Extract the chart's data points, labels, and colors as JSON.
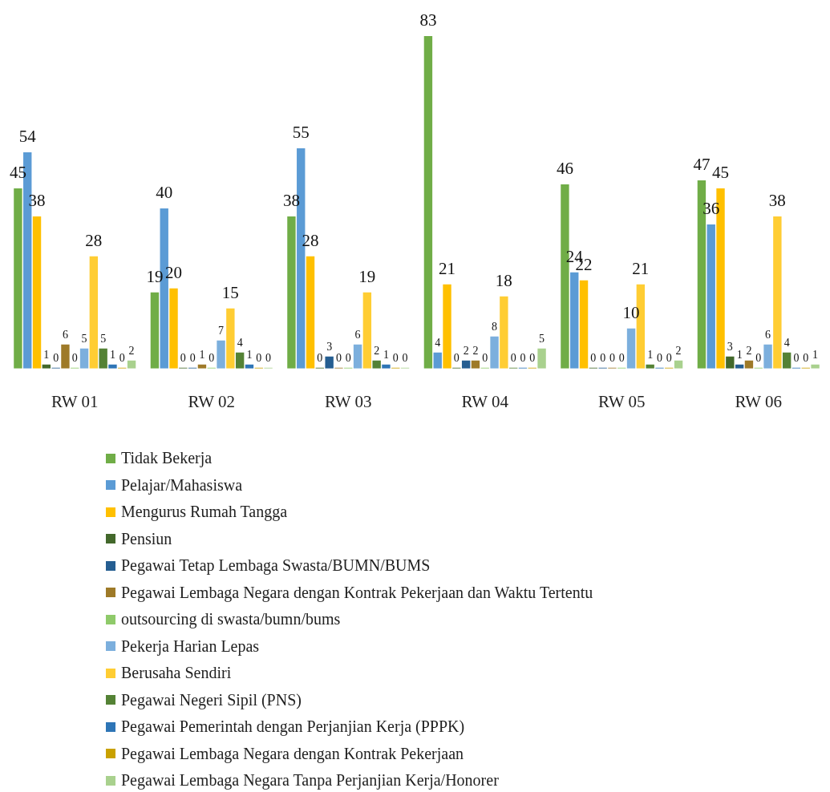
{
  "chart_data": {
    "type": "bar",
    "categories": [
      "RW 01",
      "RW 02",
      "RW 03",
      "RW 04",
      "RW 05",
      "RW 06"
    ],
    "series": [
      {
        "name": "Tidak Bekerja",
        "color": "#70ad47",
        "values": [
          45,
          19,
          38,
          83,
          46,
          47
        ]
      },
      {
        "name": "Pelajar/Mahasiswa",
        "color": "#5b9bd5",
        "values": [
          54,
          40,
          55,
          4,
          24,
          36
        ]
      },
      {
        "name": "Mengurus Rumah Tangga",
        "color": "#ffc000",
        "values": [
          38,
          20,
          28,
          21,
          22,
          45
        ]
      },
      {
        "name": "Pensiun",
        "color": "#43682b",
        "values": [
          1,
          0,
          0,
          0,
          0,
          3
        ]
      },
      {
        "name": "Pegawai Tetap Lembaga Swasta/BUMN/BUMS",
        "color": "#255e91",
        "values": [
          0,
          0,
          3,
          2,
          0,
          1
        ]
      },
      {
        "name": "Pegawai Lembaga Negara dengan Kontrak Pekerjaan dan Waktu Tertentu",
        "color": "#9e7a28",
        "values": [
          6,
          1,
          0,
          2,
          0,
          2
        ]
      },
      {
        "name": "outsourcing di swasta/bumn/bums",
        "color": "#8fca6a",
        "values": [
          0,
          0,
          0,
          0,
          0,
          0
        ]
      },
      {
        "name": "Pekerja Harian Lepas",
        "color": "#7cafdd",
        "values": [
          5,
          7,
          6,
          8,
          10,
          6
        ]
      },
      {
        "name": "Berusaha Sendiri",
        "color": "#ffcd33",
        "values": [
          28,
          15,
          19,
          18,
          21,
          38
        ]
      },
      {
        "name": "Pegawai Negeri Sipil (PNS)",
        "color": "#548235",
        "values": [
          5,
          4,
          2,
          0,
          1,
          4
        ]
      },
      {
        "name": "Pegawai Pemerintah dengan Perjanjian Kerja (PPPK)",
        "color": "#2e75b6",
        "values": [
          1,
          1,
          1,
          0,
          0,
          0
        ]
      },
      {
        "name": "Pegawai Lembaga Negara dengan Kontrak Pekerjaan",
        "color": "#c9a100",
        "values": [
          0,
          0,
          0,
          0,
          0,
          0
        ]
      },
      {
        "name": "Pegawai Lembaga Negara Tanpa Perjanjian Kerja/Honorer",
        "color": "#a9d18e",
        "values": [
          2,
          0,
          0,
          5,
          2,
          1
        ]
      }
    ],
    "data_labels": true,
    "grid": false,
    "legend": "bottom"
  }
}
